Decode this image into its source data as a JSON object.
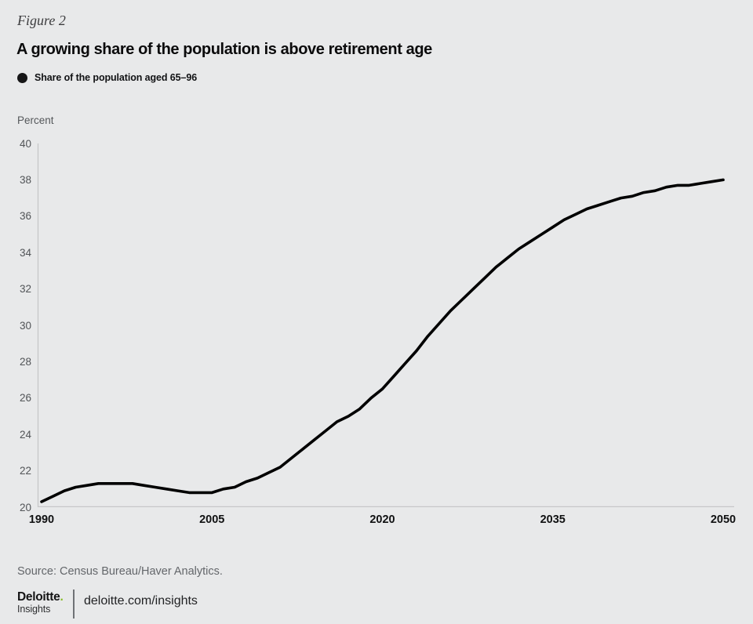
{
  "header": {
    "figure_label": "Figure 2",
    "title": "A growing share of the population is above retirement age"
  },
  "legend": {
    "items": [
      {
        "label": "Share of the population aged 65–96",
        "marker": "black-dot",
        "color": "#161617"
      }
    ]
  },
  "chart_data": {
    "type": "line",
    "title": "A growing share of the population is above retirement age",
    "ylabel": "Percent",
    "xlabel": "",
    "xlim": [
      1990,
      2050
    ],
    "ylim": [
      20,
      40
    ],
    "x_ticks": [
      1990,
      2005,
      2020,
      2035,
      2050
    ],
    "y_ticks": [
      20,
      22,
      24,
      26,
      28,
      30,
      32,
      34,
      36,
      38,
      40
    ],
    "grid": false,
    "legend_position": "top-left",
    "line_color": "#000000",
    "axis_line_color": "#c6c7c8",
    "series": [
      {
        "name": "Share of the population aged 65–96",
        "x": [
          1990,
          1991,
          1992,
          1993,
          1994,
          1995,
          1996,
          1997,
          1998,
          1999,
          2000,
          2001,
          2002,
          2003,
          2004,
          2005,
          2006,
          2007,
          2008,
          2009,
          2010,
          2011,
          2012,
          2013,
          2014,
          2015,
          2016,
          2017,
          2018,
          2019,
          2020,
          2021,
          2022,
          2023,
          2024,
          2025,
          2026,
          2027,
          2028,
          2029,
          2030,
          2031,
          2032,
          2033,
          2034,
          2035,
          2036,
          2037,
          2038,
          2039,
          2040,
          2041,
          2042,
          2043,
          2044,
          2045,
          2046,
          2047,
          2048,
          2049,
          2050
        ],
        "values": [
          20.3,
          20.6,
          20.9,
          21.1,
          21.2,
          21.3,
          21.3,
          21.3,
          21.3,
          21.2,
          21.1,
          21.0,
          20.9,
          20.8,
          20.8,
          20.8,
          21.0,
          21.1,
          21.4,
          21.6,
          21.9,
          22.2,
          22.7,
          23.2,
          23.7,
          24.2,
          24.7,
          25.0,
          25.4,
          26.0,
          26.5,
          27.2,
          27.9,
          28.6,
          29.4,
          30.1,
          30.8,
          31.4,
          32.0,
          32.6,
          33.2,
          33.7,
          34.2,
          34.6,
          35.0,
          35.4,
          35.8,
          36.1,
          36.4,
          36.6,
          36.8,
          37.0,
          37.1,
          37.3,
          37.4,
          37.6,
          37.7,
          37.7,
          37.8,
          37.9,
          38.0
        ]
      }
    ]
  },
  "footer": {
    "source": "Source: Census Bureau/Haver Analytics.",
    "brand_name": "Deloitte",
    "brand_dot": ".",
    "brand_sub": "Insights",
    "url": "deloitte.com/insights",
    "brand_green": "#86bc25"
  }
}
